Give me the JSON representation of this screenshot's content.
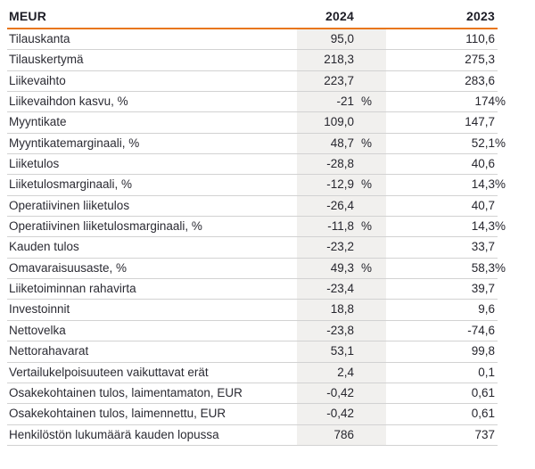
{
  "table": {
    "header": {
      "label_col": "MEUR",
      "col_2024": "2024",
      "col_2023": "2023"
    },
    "rows": [
      {
        "label": "Tilauskanta",
        "v2024": "95,0",
        "v2023": "110,6"
      },
      {
        "label": "Tilauskertymä",
        "v2024": "218,3",
        "v2023": "275,3"
      },
      {
        "label": "Liikevaihto",
        "v2024": "223,7",
        "v2023": "283,6"
      },
      {
        "label": "Liikevaihdon kasvu, %",
        "v2024": "-21 %",
        "v2023": "174 %"
      },
      {
        "label": "Myyntikate",
        "v2024": "109,0",
        "v2023": "147,7"
      },
      {
        "label": "Myyntikatemarginaali, %",
        "v2024": "48,7 %",
        "v2023": "52,1 %"
      },
      {
        "label": "Liiketulos",
        "v2024": "-28,8",
        "v2023": "40,6"
      },
      {
        "label": "Liiketulosmarginaali, %",
        "v2024": "-12,9 %",
        "v2023": "14,3 %"
      },
      {
        "label": "Operatiivinen liiketulos",
        "v2024": "-26,4",
        "v2023": "40,7"
      },
      {
        "label": "Operatiivinen liiketulosmarginaali, %",
        "v2024": "-11,8 %",
        "v2023": "14,3 %"
      },
      {
        "label": "Kauden tulos",
        "v2024": "-23,2",
        "v2023": "33,7"
      },
      {
        "label": "Omavaraisuusaste, %",
        "v2024": "49,3 %",
        "v2023": "58,3 %"
      },
      {
        "label": "Liiketoiminnan rahavirta",
        "v2024": "-23,4",
        "v2023": "39,7"
      },
      {
        "label": "Investoinnit",
        "v2024": "18,8",
        "v2023": "9,6"
      },
      {
        "label": "Nettovelka",
        "v2024": "-23,8",
        "v2023": "-74,6"
      },
      {
        "label": "Nettorahavarat",
        "v2024": "53,1",
        "v2023": "99,8"
      },
      {
        "label": "Vertailukelpoisuuteen vaikuttavat erät",
        "v2024": "2,4",
        "v2023": "0,1"
      },
      {
        "label": "Osakekohtainen tulos, laimentamaton, EUR",
        "v2024": "-0,42",
        "v2023": "0,61"
      },
      {
        "label": "Osakekohtainen tulos, laimennettu, EUR",
        "v2024": "-0,42",
        "v2023": "0,61"
      },
      {
        "label": "Henkilöstön lukumäärä kauden lopussa",
        "v2024": "786",
        "v2023": "737"
      }
    ]
  },
  "chart_data": {
    "type": "table",
    "title": "MEUR",
    "columns": [
      "MEUR",
      "2024",
      "2023"
    ],
    "rows": [
      [
        "Tilauskanta",
        "95,0",
        "110,6"
      ],
      [
        "Tilauskertymä",
        "218,3",
        "275,3"
      ],
      [
        "Liikevaihto",
        "223,7",
        "283,6"
      ],
      [
        "Liikevaihdon kasvu, %",
        "-21 %",
        "174 %"
      ],
      [
        "Myyntikate",
        "109,0",
        "147,7"
      ],
      [
        "Myyntikatemarginaali, %",
        "48,7 %",
        "52,1 %"
      ],
      [
        "Liiketulos",
        "-28,8",
        "40,6"
      ],
      [
        "Liiketulosmarginaali, %",
        "-12,9 %",
        "14,3 %"
      ],
      [
        "Operatiivinen liiketulos",
        "-26,4",
        "40,7"
      ],
      [
        "Operatiivinen liiketulosmarginaali, %",
        "-11,8 %",
        "14,3 %"
      ],
      [
        "Kauden tulos",
        "-23,2",
        "33,7"
      ],
      [
        "Omavaraisuusaste, %",
        "49,3 %",
        "58,3 %"
      ],
      [
        "Liiketoiminnan rahavirta",
        "-23,4",
        "39,7"
      ],
      [
        "Investoinnit",
        "18,8",
        "9,6"
      ],
      [
        "Nettovelka",
        "-23,8",
        "-74,6"
      ],
      [
        "Nettorahavarat",
        "53,1",
        "99,8"
      ],
      [
        "Vertailukelpoisuuteen vaikuttavat erät",
        "2,4",
        "0,1"
      ],
      [
        "Osakekohtainen tulos, laimentamaton, EUR",
        "-0,42",
        "0,61"
      ],
      [
        "Osakekohtainen tulos, laimennettu, EUR",
        "-0,42",
        "0,61"
      ],
      [
        "Henkilöstön lukumäärä kauden lopussa",
        "786",
        "737"
      ]
    ]
  },
  "colors": {
    "accent_orange": "#e8761a",
    "row_divider": "#d2d2d2",
    "highlight_column_bg": "#f1f0ee",
    "header_text": "#1d1d26",
    "body_text": "#2b2b33",
    "background": "#ffffff"
  }
}
